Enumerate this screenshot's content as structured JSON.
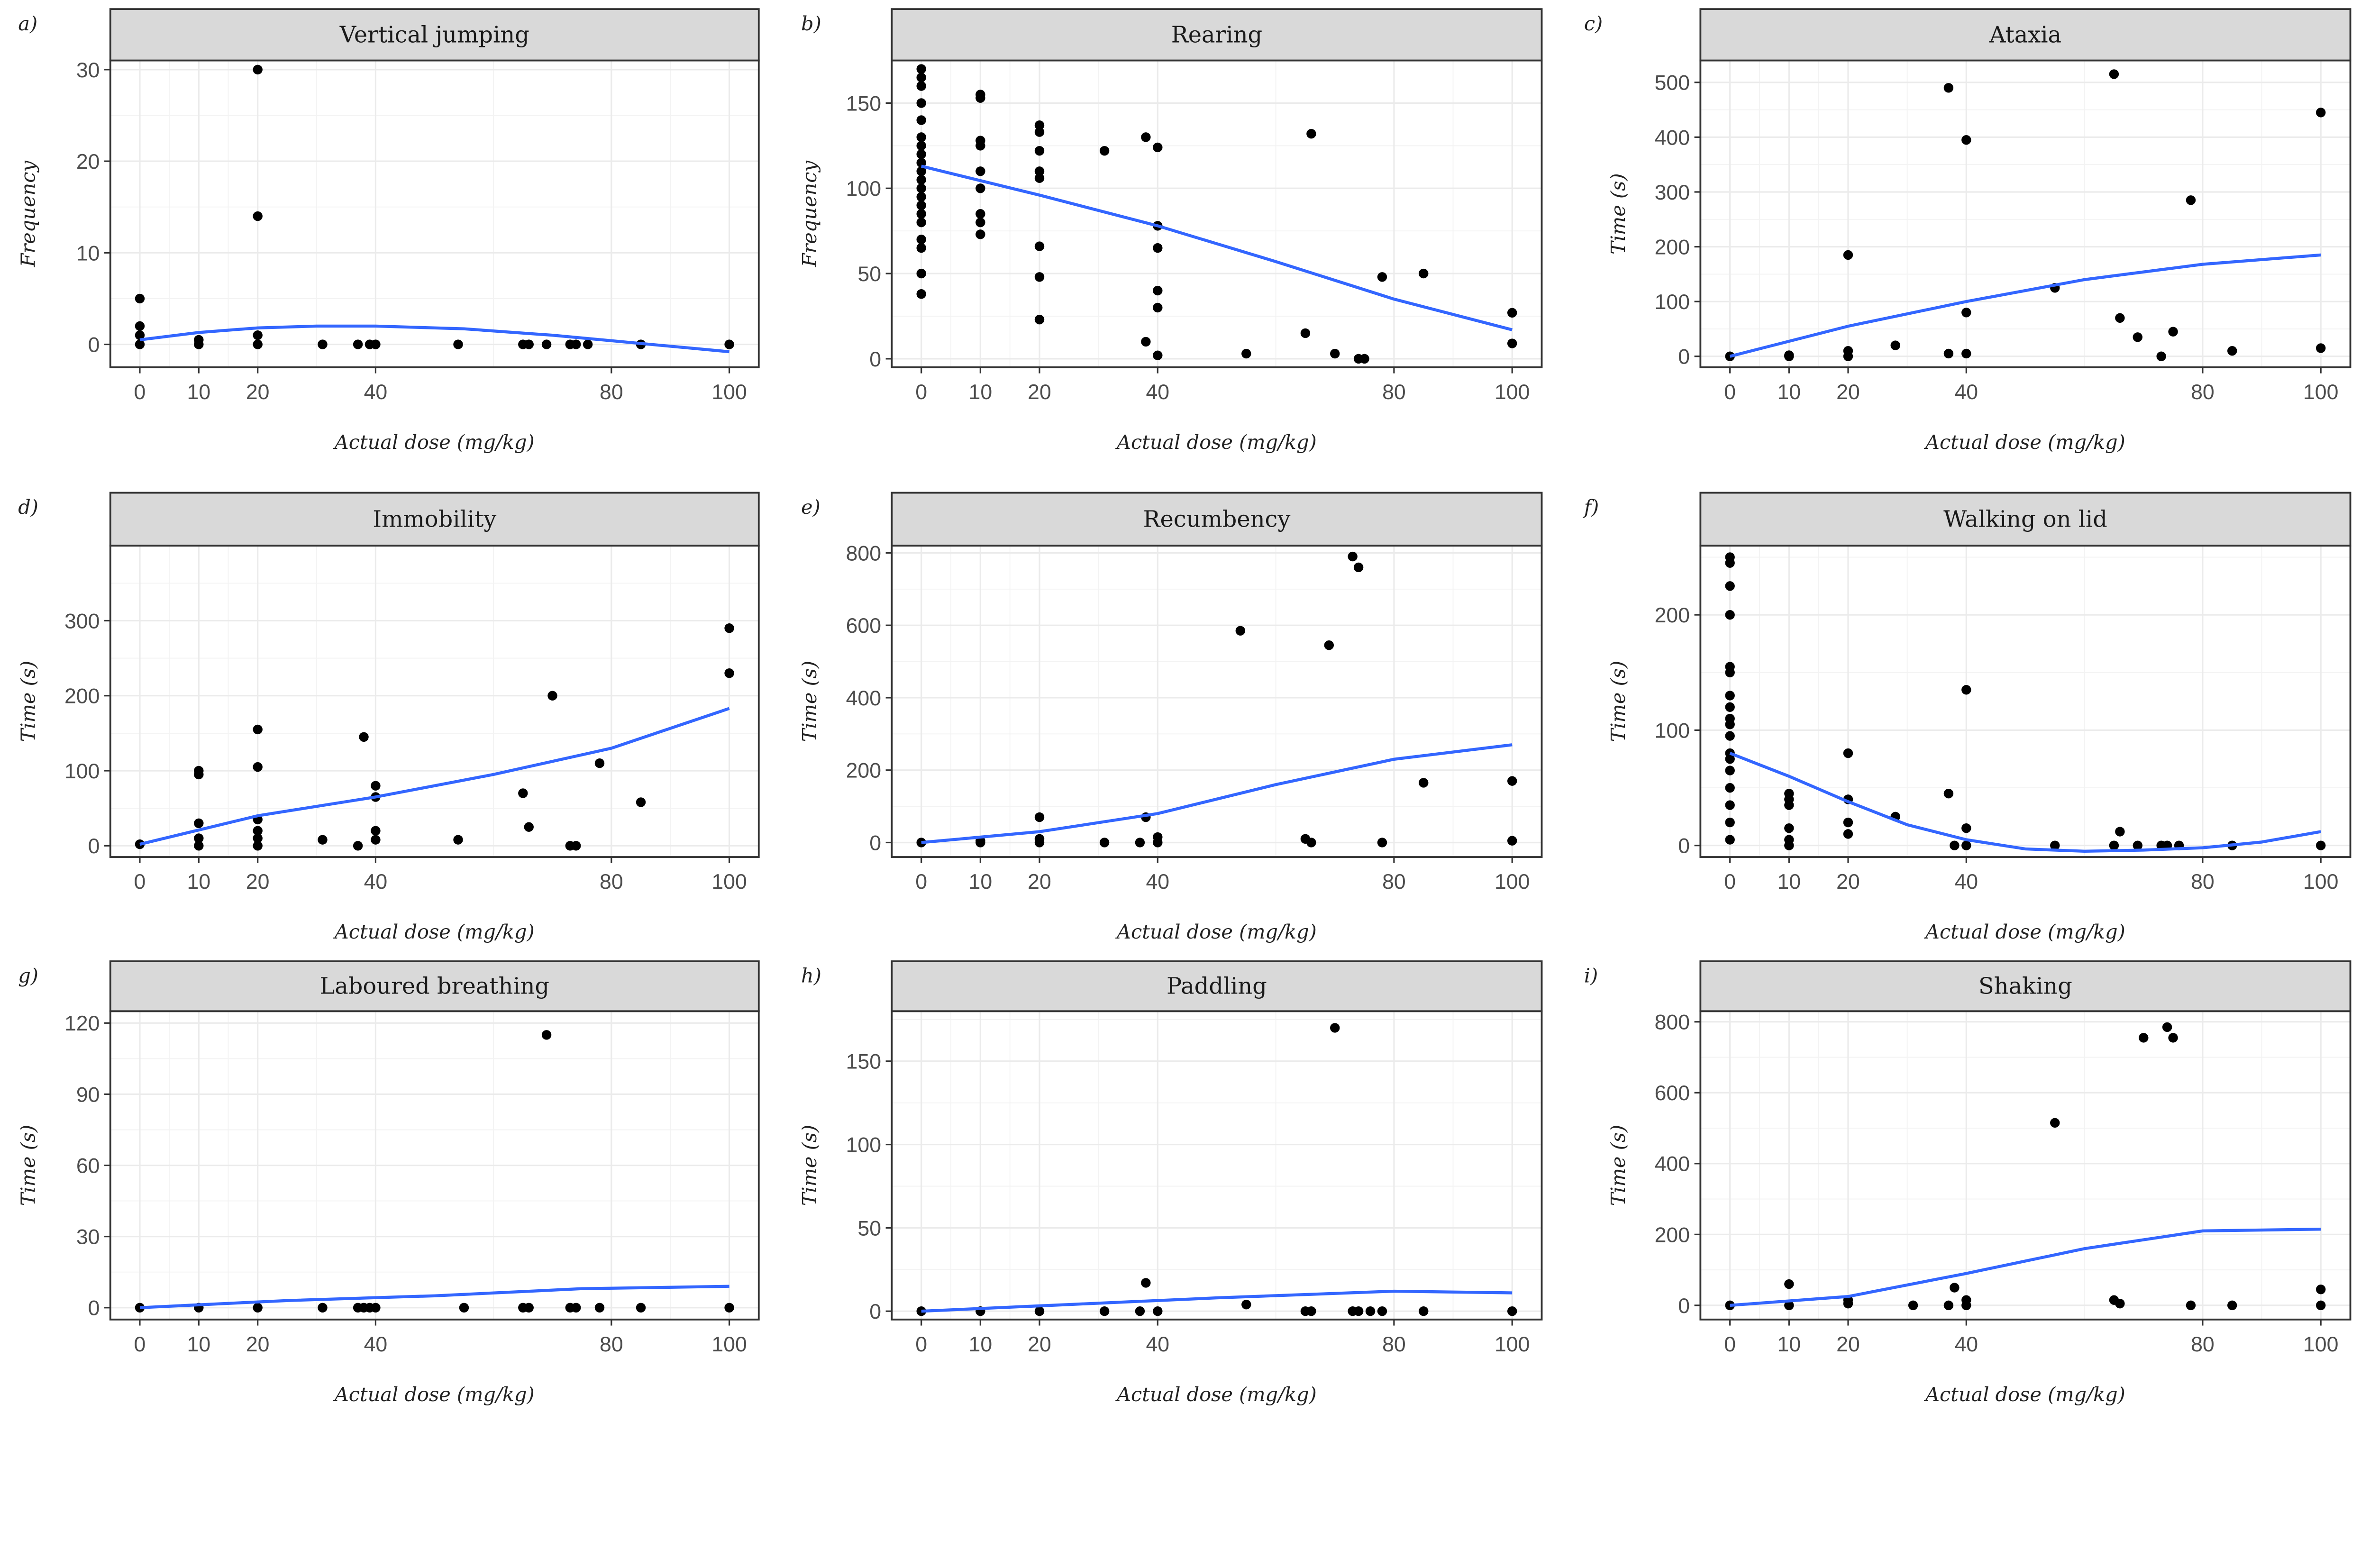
{
  "chart_data": [
    {
      "type": "scatter",
      "panel_label": "a)",
      "title": "Vertical jumping",
      "xlabel": "Actual dose (mg/kg)",
      "ylabel": "Frequency",
      "xlim": [
        -5,
        105
      ],
      "ylim": [
        -2.5,
        31
      ],
      "xticks": [
        0,
        10,
        20,
        40,
        80,
        100
      ],
      "yticks": [
        0,
        10,
        20,
        30
      ],
      "grid": true,
      "points": [
        [
          0,
          5
        ],
        [
          0,
          2
        ],
        [
          0,
          1
        ],
        [
          0,
          0
        ],
        [
          10,
          0.5
        ],
        [
          10,
          0
        ],
        [
          20,
          30
        ],
        [
          20,
          14
        ],
        [
          20,
          1
        ],
        [
          20,
          0
        ],
        [
          31,
          0
        ],
        [
          37,
          0
        ],
        [
          39,
          0
        ],
        [
          40,
          0
        ],
        [
          54,
          0
        ],
        [
          65,
          0
        ],
        [
          66,
          0
        ],
        [
          69,
          0
        ],
        [
          73,
          0
        ],
        [
          74,
          0
        ],
        [
          76,
          0
        ],
        [
          85,
          0
        ],
        [
          100,
          0
        ]
      ],
      "fit": [
        [
          0,
          0.5
        ],
        [
          10,
          1.3
        ],
        [
          20,
          1.8
        ],
        [
          30,
          2
        ],
        [
          40,
          2
        ],
        [
          55,
          1.7
        ],
        [
          70,
          1
        ],
        [
          85,
          0.1
        ],
        [
          100,
          -0.8
        ]
      ]
    },
    {
      "type": "scatter",
      "panel_label": "b)",
      "title": "Rearing",
      "xlabel": "Actual dose (mg/kg)",
      "ylabel": "Frequency",
      "xlim": [
        -5,
        105
      ],
      "ylim": [
        -5,
        175
      ],
      "xticks": [
        0,
        10,
        20,
        40,
        80,
        100
      ],
      "yticks": [
        0,
        50,
        100,
        150
      ],
      "grid": true,
      "points": [
        [
          0,
          170
        ],
        [
          0,
          165
        ],
        [
          0,
          160
        ],
        [
          0,
          150
        ],
        [
          0,
          140
        ],
        [
          0,
          130
        ],
        [
          0,
          125
        ],
        [
          0,
          120
        ],
        [
          0,
          115
        ],
        [
          0,
          110
        ],
        [
          0,
          105
        ],
        [
          0,
          100
        ],
        [
          0,
          95
        ],
        [
          0,
          90
        ],
        [
          0,
          85
        ],
        [
          0,
          80
        ],
        [
          0,
          70
        ],
        [
          0,
          65
        ],
        [
          0,
          50
        ],
        [
          0,
          38
        ],
        [
          10,
          155
        ],
        [
          10,
          153
        ],
        [
          10,
          128
        ],
        [
          10,
          125
        ],
        [
          10,
          110
        ],
        [
          10,
          100
        ],
        [
          10,
          85
        ],
        [
          10,
          80
        ],
        [
          10,
          73
        ],
        [
          20,
          137
        ],
        [
          20,
          133
        ],
        [
          20,
          122
        ],
        [
          20,
          110
        ],
        [
          20,
          106
        ],
        [
          20,
          66
        ],
        [
          20,
          48
        ],
        [
          20,
          23
        ],
        [
          31,
          122
        ],
        [
          38,
          130
        ],
        [
          38,
          10
        ],
        [
          40,
          124
        ],
        [
          40,
          78
        ],
        [
          40,
          65
        ],
        [
          40,
          40
        ],
        [
          40,
          30
        ],
        [
          40,
          2
        ],
        [
          55,
          3
        ],
        [
          65,
          15
        ],
        [
          66,
          132
        ],
        [
          70,
          3
        ],
        [
          74,
          0
        ],
        [
          75,
          0
        ],
        [
          78,
          48
        ],
        [
          85,
          50
        ],
        [
          100,
          27
        ],
        [
          100,
          9
        ]
      ],
      "fit": [
        [
          0,
          113
        ],
        [
          20,
          96
        ],
        [
          40,
          78
        ],
        [
          60,
          57
        ],
        [
          80,
          35
        ],
        [
          100,
          17
        ]
      ]
    },
    {
      "type": "scatter",
      "panel_label": "c)",
      "title": "Ataxia",
      "xlabel": "Actual dose (mg/kg)",
      "ylabel": "Time (s)",
      "xlim": [
        -5,
        105
      ],
      "ylim": [
        -20,
        540
      ],
      "xticks": [
        0,
        10,
        20,
        40,
        80,
        100
      ],
      "yticks": [
        0,
        100,
        200,
        300,
        400,
        500
      ],
      "grid": true,
      "points": [
        [
          0,
          0
        ],
        [
          10,
          0
        ],
        [
          10,
          2
        ],
        [
          20,
          185
        ],
        [
          20,
          10
        ],
        [
          20,
          0
        ],
        [
          28,
          20
        ],
        [
          37,
          490
        ],
        [
          37,
          5
        ],
        [
          40,
          395
        ],
        [
          40,
          80
        ],
        [
          40,
          5
        ],
        [
          55,
          125
        ],
        [
          65,
          515
        ],
        [
          66,
          70
        ],
        [
          69,
          35
        ],
        [
          73,
          0
        ],
        [
          75,
          45
        ],
        [
          78,
          285
        ],
        [
          85,
          10
        ],
        [
          100,
          445
        ],
        [
          100,
          15
        ]
      ],
      "fit": [
        [
          0,
          0
        ],
        [
          20,
          55
        ],
        [
          40,
          100
        ],
        [
          60,
          140
        ],
        [
          80,
          168
        ],
        [
          100,
          185
        ]
      ]
    },
    {
      "type": "scatter",
      "panel_label": "d)",
      "title": "Immobility",
      "xlabel": "Actual dose (mg/kg)",
      "ylabel": "Time (s)",
      "xlim": [
        -5,
        105
      ],
      "ylim": [
        -15,
        400
      ],
      "xticks": [
        0,
        10,
        20,
        40,
        80,
        100
      ],
      "yticks": [
        0,
        100,
        200,
        300
      ],
      "grid": true,
      "points": [
        [
          0,
          2
        ],
        [
          10,
          100
        ],
        [
          10,
          95
        ],
        [
          10,
          30
        ],
        [
          10,
          10
        ],
        [
          10,
          0
        ],
        [
          20,
          155
        ],
        [
          20,
          105
        ],
        [
          20,
          35
        ],
        [
          20,
          20
        ],
        [
          20,
          10
        ],
        [
          20,
          0
        ],
        [
          31,
          8
        ],
        [
          37,
          0
        ],
        [
          38,
          145
        ],
        [
          40,
          80
        ],
        [
          40,
          65
        ],
        [
          40,
          20
        ],
        [
          40,
          8
        ],
        [
          54,
          8
        ],
        [
          65,
          70
        ],
        [
          66,
          25
        ],
        [
          70,
          200
        ],
        [
          73,
          0
        ],
        [
          74,
          0
        ],
        [
          78,
          110
        ],
        [
          85,
          58
        ],
        [
          100,
          290
        ],
        [
          100,
          230
        ]
      ],
      "fit": [
        [
          0,
          2
        ],
        [
          20,
          40
        ],
        [
          40,
          65
        ],
        [
          60,
          95
        ],
        [
          80,
          130
        ],
        [
          100,
          183
        ]
      ]
    },
    {
      "type": "scatter",
      "panel_label": "e)",
      "title": "Recumbency",
      "xlabel": "Actual dose (mg/kg)",
      "ylabel": "Time (s)",
      "xlim": [
        -5,
        105
      ],
      "ylim": [
        -40,
        820
      ],
      "xticks": [
        0,
        10,
        20,
        40,
        80,
        100
      ],
      "yticks": [
        0,
        200,
        400,
        600,
        800
      ],
      "grid": true,
      "points": [
        [
          0,
          0
        ],
        [
          10,
          0
        ],
        [
          10,
          5
        ],
        [
          20,
          70
        ],
        [
          20,
          10
        ],
        [
          20,
          0
        ],
        [
          31,
          0
        ],
        [
          37,
          0
        ],
        [
          38,
          70
        ],
        [
          40,
          15
        ],
        [
          40,
          0
        ],
        [
          54,
          585
        ],
        [
          65,
          10
        ],
        [
          66,
          0
        ],
        [
          69,
          545
        ],
        [
          73,
          790
        ],
        [
          74,
          760
        ],
        [
          78,
          0
        ],
        [
          85,
          165
        ],
        [
          100,
          170
        ],
        [
          100,
          5
        ]
      ],
      "fit": [
        [
          0,
          0
        ],
        [
          20,
          30
        ],
        [
          40,
          80
        ],
        [
          60,
          160
        ],
        [
          80,
          230
        ],
        [
          100,
          270
        ]
      ]
    },
    {
      "type": "scatter",
      "panel_label": "f)",
      "title": "Walking on lid",
      "xlabel": "Actual dose (mg/kg)",
      "ylabel": "Time (s)",
      "xlim": [
        -5,
        105
      ],
      "ylim": [
        -10,
        260
      ],
      "xticks": [
        0,
        10,
        20,
        40,
        80,
        100
      ],
      "yticks": [
        0,
        100,
        200
      ],
      "grid": true,
      "points": [
        [
          0,
          250
        ],
        [
          0,
          245
        ],
        [
          0,
          225
        ],
        [
          0,
          200
        ],
        [
          0,
          155
        ],
        [
          0,
          150
        ],
        [
          0,
          130
        ],
        [
          0,
          120
        ],
        [
          0,
          110
        ],
        [
          0,
          105
        ],
        [
          0,
          95
        ],
        [
          0,
          80
        ],
        [
          0,
          75
        ],
        [
          0,
          65
        ],
        [
          0,
          50
        ],
        [
          0,
          35
        ],
        [
          0,
          20
        ],
        [
          0,
          5
        ],
        [
          10,
          45
        ],
        [
          10,
          40
        ],
        [
          10,
          35
        ],
        [
          10,
          15
        ],
        [
          10,
          5
        ],
        [
          10,
          0
        ],
        [
          20,
          80
        ],
        [
          20,
          40
        ],
        [
          20,
          20
        ],
        [
          20,
          10
        ],
        [
          28,
          25
        ],
        [
          37,
          45
        ],
        [
          38,
          0
        ],
        [
          40,
          135
        ],
        [
          40,
          15
        ],
        [
          40,
          0
        ],
        [
          55,
          0
        ],
        [
          65,
          0
        ],
        [
          66,
          12
        ],
        [
          69,
          0
        ],
        [
          73,
          0
        ],
        [
          74,
          0
        ],
        [
          76,
          0
        ],
        [
          85,
          0
        ],
        [
          100,
          0
        ]
      ],
      "fit": [
        [
          0,
          80
        ],
        [
          10,
          60
        ],
        [
          20,
          38
        ],
        [
          30,
          18
        ],
        [
          40,
          5
        ],
        [
          50,
          -3
        ],
        [
          60,
          -5
        ],
        [
          70,
          -4
        ],
        [
          80,
          -2
        ],
        [
          90,
          3
        ],
        [
          100,
          12
        ]
      ]
    },
    {
      "type": "scatter",
      "panel_label": "g)",
      "title": "Laboured breathing",
      "xlabel": "Actual dose (mg/kg)",
      "ylabel": "Time (s)",
      "xlim": [
        -5,
        105
      ],
      "ylim": [
        -5,
        125
      ],
      "xticks": [
        0,
        10,
        20,
        40,
        80,
        100
      ],
      "yticks": [
        0,
        30,
        60,
        90,
        120
      ],
      "grid": true,
      "points": [
        [
          0,
          0
        ],
        [
          10,
          0
        ],
        [
          20,
          0
        ],
        [
          31,
          0
        ],
        [
          37,
          0
        ],
        [
          38,
          0
        ],
        [
          39,
          0
        ],
        [
          40,
          0
        ],
        [
          55,
          0
        ],
        [
          65,
          0
        ],
        [
          66,
          0
        ],
        [
          69,
          115
        ],
        [
          73,
          0
        ],
        [
          74,
          0
        ],
        [
          78,
          0
        ],
        [
          85,
          0
        ],
        [
          100,
          0
        ]
      ],
      "fit": [
        [
          0,
          0
        ],
        [
          25,
          3
        ],
        [
          50,
          5
        ],
        [
          75,
          8
        ],
        [
          100,
          9
        ]
      ]
    },
    {
      "type": "scatter",
      "panel_label": "h)",
      "title": "Paddling",
      "xlabel": "Actual dose (mg/kg)",
      "ylabel": "Time (s)",
      "xlim": [
        -5,
        105
      ],
      "ylim": [
        -5,
        180
      ],
      "xticks": [
        0,
        10,
        20,
        40,
        80,
        100
      ],
      "yticks": [
        0,
        50,
        100,
        150
      ],
      "grid": true,
      "points": [
        [
          0,
          0
        ],
        [
          10,
          0
        ],
        [
          20,
          0
        ],
        [
          31,
          0
        ],
        [
          37,
          0
        ],
        [
          38,
          17
        ],
        [
          40,
          0
        ],
        [
          55,
          4
        ],
        [
          65,
          0
        ],
        [
          66,
          0
        ],
        [
          70,
          170
        ],
        [
          73,
          0
        ],
        [
          74,
          0
        ],
        [
          76,
          0
        ],
        [
          78,
          0
        ],
        [
          85,
          0
        ],
        [
          100,
          0
        ]
      ],
      "fit": [
        [
          0,
          0
        ],
        [
          25,
          4
        ],
        [
          50,
          8
        ],
        [
          80,
          12
        ],
        [
          100,
          11
        ]
      ]
    },
    {
      "type": "scatter",
      "panel_label": "i)",
      "title": "Shaking",
      "xlabel": "Actual dose (mg/kg)",
      "ylabel": "Time (s)",
      "xlim": [
        -5,
        105
      ],
      "ylim": [
        -40,
        830
      ],
      "xticks": [
        0,
        10,
        20,
        40,
        80,
        100
      ],
      "yticks": [
        0,
        200,
        400,
        600,
        800
      ],
      "grid": true,
      "points": [
        [
          0,
          0
        ],
        [
          10,
          60
        ],
        [
          10,
          0
        ],
        [
          20,
          15
        ],
        [
          20,
          5
        ],
        [
          31,
          0
        ],
        [
          37,
          0
        ],
        [
          38,
          50
        ],
        [
          40,
          15
        ],
        [
          40,
          0
        ],
        [
          55,
          515
        ],
        [
          65,
          15
        ],
        [
          66,
          5
        ],
        [
          70,
          755
        ],
        [
          74,
          785
        ],
        [
          75,
          755
        ],
        [
          78,
          0
        ],
        [
          85,
          0
        ],
        [
          100,
          45
        ],
        [
          100,
          0
        ]
      ],
      "fit": [
        [
          0,
          0
        ],
        [
          20,
          25
        ],
        [
          40,
          90
        ],
        [
          60,
          160
        ],
        [
          80,
          210
        ],
        [
          100,
          215
        ]
      ]
    }
  ],
  "colors": {
    "fit_line": "#3366ff",
    "points": "#000000",
    "strip": "#d9d9d9",
    "grid": "#ebebeb",
    "panel_border": "#333333"
  }
}
